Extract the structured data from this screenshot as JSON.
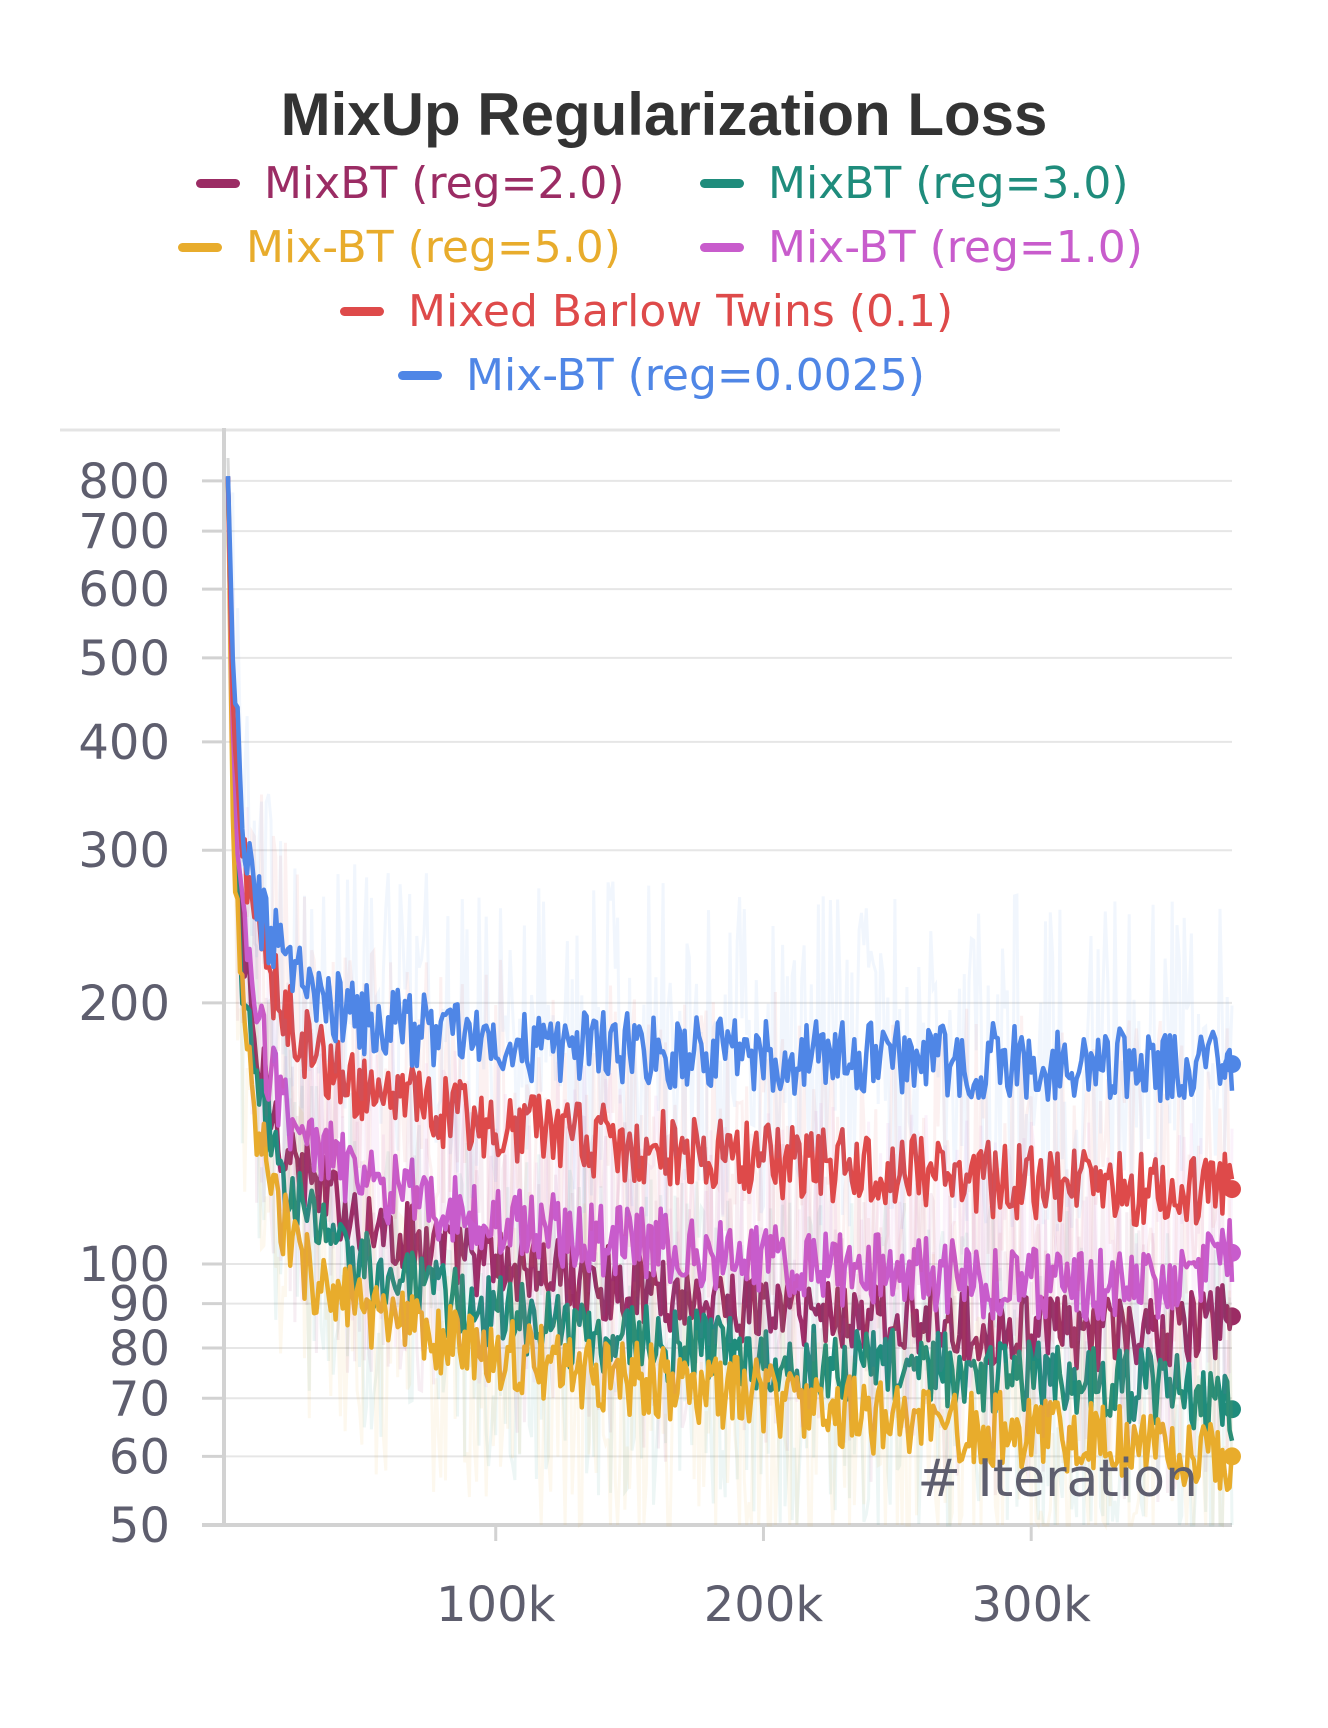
{
  "chart_data": {
    "type": "line",
    "title": "MixUp Regularization Loss",
    "xlabel": "# Iteration",
    "ylabel": "",
    "yscale": "log",
    "ylim": [
      50,
      850
    ],
    "xlim": [
      0,
      375000
    ],
    "y_ticks": [
      800,
      700,
      600,
      500,
      400,
      300,
      200,
      100,
      90,
      80,
      70,
      60,
      50
    ],
    "x_ticks": [
      {
        "value": 100000,
        "label": "100k"
      },
      {
        "value": 200000,
        "label": "200k"
      },
      {
        "value": 300000,
        "label": "300k"
      }
    ],
    "x": [
      0,
      2000,
      5000,
      10000,
      20000,
      30000,
      50000,
      75000,
      100000,
      125000,
      150000,
      175000,
      200000,
      225000,
      250000,
      275000,
      300000,
      325000,
      350000,
      375000
    ],
    "series": [
      {
        "name": "MixBT (reg=2.0)",
        "color": "#9b2c64",
        "values": [
          800,
          360,
          240,
          175,
          140,
          125,
          112,
          105,
          100,
          97,
          94,
          91,
          89,
          88,
          86,
          85,
          84,
          83,
          83,
          87
        ]
      },
      {
        "name": "MixBT (reg=3.0)",
        "color": "#1f8c7c",
        "values": [
          800,
          330,
          215,
          160,
          128,
          112,
          100,
          92,
          88,
          84,
          82,
          80,
          78,
          77,
          76,
          75,
          74,
          73,
          72,
          68
        ]
      },
      {
        "name": "Mix-BT (reg=5.0)",
        "color": "#e8ac2c",
        "values": [
          800,
          300,
          200,
          145,
          112,
          98,
          88,
          82,
          79,
          76,
          74,
          72,
          70,
          68,
          66,
          65,
          64,
          63,
          62,
          60
        ]
      },
      {
        "name": "Mix-BT (reg=1.0)",
        "color": "#c85ccc",
        "values": [
          800,
          380,
          260,
          190,
          155,
          138,
          125,
          118,
          112,
          109,
          106,
          104,
          101,
          99,
          98,
          96,
          95,
          94,
          94,
          103
        ]
      },
      {
        "name": "Mixed Barlow Twins (0.1)",
        "color": "#de4a4a",
        "values": [
          800,
          420,
          300,
          240,
          200,
          178,
          160,
          150,
          145,
          140,
          137,
          135,
          132,
          130,
          128,
          126,
          124,
          123,
          122,
          122
        ]
      },
      {
        "name": "Mix-BT (reg=0.0025)",
        "color": "#4f86e6",
        "values": [
          800,
          480,
          340,
          260,
          225,
          205,
          192,
          185,
          180,
          178,
          176,
          175,
          174,
          173,
          172,
          172,
          171,
          171,
          170,
          170
        ]
      }
    ]
  }
}
